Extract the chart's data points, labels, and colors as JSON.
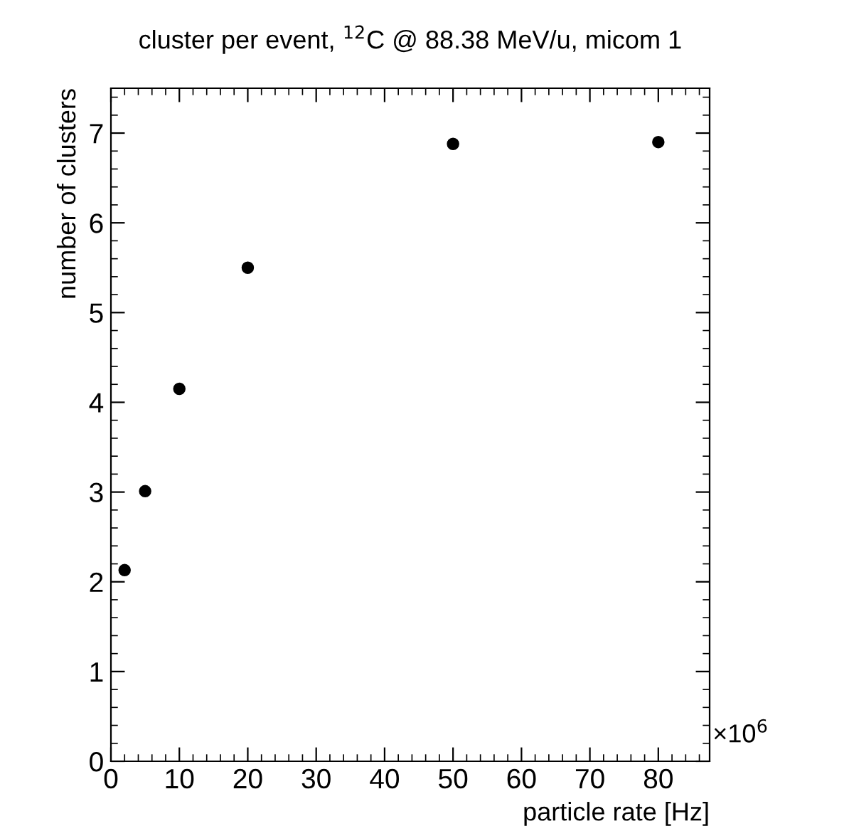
{
  "chart_data": {
    "type": "scatter",
    "title": "cluster per event, $^{12}$C @ 88.38 MeV/u, micom 1",
    "xlabel": "particle rate [Hz]",
    "ylabel": "number of clusters",
    "annotations": [
      "×10$^{6}$"
    ],
    "x": [
      2,
      5,
      10,
      20,
      50,
      80
    ],
    "series": [
      {
        "color": "#000000",
        "values": [
          2.13,
          3.01,
          4.15,
          5.5,
          6.88,
          6.9
        ]
      }
    ],
    "xlim": [
      0,
      87.5
    ],
    "ylim": [
      0,
      7.5
    ],
    "xticks": [
      0,
      10,
      20,
      30,
      40,
      50,
      60,
      70,
      80
    ],
    "yticks": [
      0,
      1,
      2,
      3,
      4,
      5,
      6,
      7
    ],
    "marker": "circle",
    "grid": false,
    "legend": false
  }
}
